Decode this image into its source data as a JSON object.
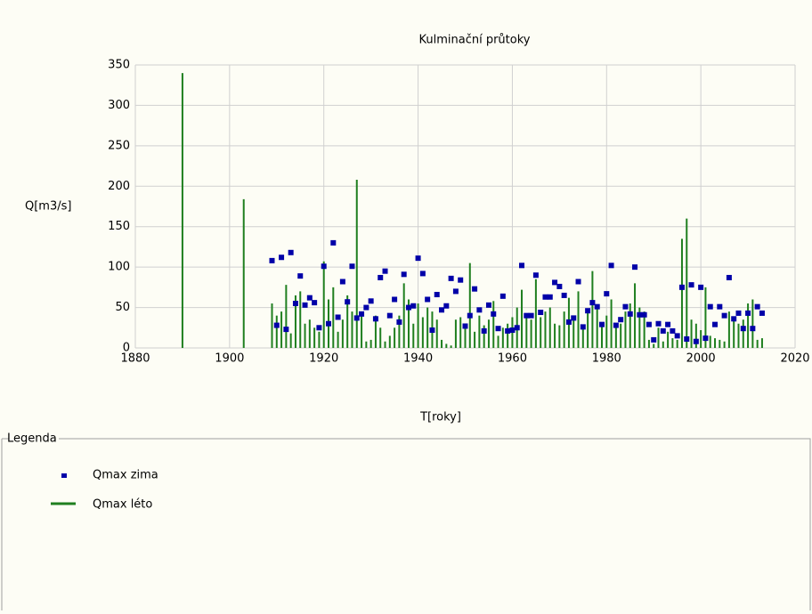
{
  "chart_data": {
    "type": "scatter",
    "title": "Kulminační průtoky",
    "x_label": "T[roky]",
    "y_label": "Q[m3/s]",
    "legend_title": "Legenda",
    "xlim": [
      1880,
      2020
    ],
    "ylim": [
      0,
      350
    ],
    "xticks": [
      1880,
      1900,
      1920,
      1940,
      1960,
      1980,
      2000,
      2020
    ],
    "yticks": [
      0,
      50,
      100,
      150,
      200,
      250,
      300,
      350
    ],
    "grid": true,
    "series": [
      {
        "name": "Qmax zima",
        "color": "#0000a8",
        "style": "square",
        "x": [
          1909,
          1910,
          1911,
          1912,
          1913,
          1914,
          1915,
          1916,
          1917,
          1918,
          1919,
          1920,
          1921,
          1922,
          1923,
          1924,
          1925,
          1926,
          1927,
          1928,
          1929,
          1930,
          1931,
          1932,
          1933,
          1934,
          1935,
          1936,
          1937,
          1938,
          1939,
          1940,
          1941,
          1942,
          1943,
          1944,
          1945,
          1946,
          1947,
          1948,
          1949,
          1950,
          1951,
          1952,
          1953,
          1954,
          1955,
          1956,
          1957,
          1958,
          1959,
          1960,
          1961,
          1962,
          1963,
          1964,
          1965,
          1966,
          1967,
          1968,
          1969,
          1970,
          1971,
          1972,
          1973,
          1974,
          1975,
          1976,
          1977,
          1978,
          1979,
          1980,
          1981,
          1982,
          1983,
          1984,
          1985,
          1986,
          1987,
          1988,
          1989,
          1990,
          1991,
          1992,
          1993,
          1994,
          1995,
          1996,
          1997,
          1998,
          1999,
          2000,
          2001,
          2002,
          2003,
          2004,
          2005,
          2006,
          2007,
          2008,
          2009,
          2010,
          2011,
          2012,
          2013
        ],
        "values": [
          108,
          28,
          112,
          23,
          118,
          55,
          89,
          53,
          62,
          56,
          25,
          101,
          30,
          130,
          38,
          82,
          57,
          101,
          37,
          42,
          50,
          58,
          36,
          87,
          95,
          40,
          60,
          32,
          91,
          50,
          52,
          111,
          92,
          60,
          22,
          66,
          47,
          52,
          86,
          70,
          84,
          27,
          40,
          73,
          47,
          21,
          53,
          42,
          24,
          64,
          21,
          22,
          25,
          102,
          40,
          40,
          90,
          44,
          63,
          63,
          81,
          76,
          65,
          32,
          37,
          82,
          26,
          46,
          56,
          51,
          29,
          67,
          102,
          28,
          35,
          51,
          42,
          100,
          41,
          41,
          29,
          10,
          30,
          21,
          29,
          21,
          15,
          75,
          11,
          78,
          8,
          75,
          12,
          51,
          29,
          51,
          40,
          87,
          36,
          43,
          24,
          43,
          24,
          51,
          43
        ]
      },
      {
        "name": "Qmax léto",
        "color": "#1f7f1f",
        "style": "stem",
        "x": [
          1890,
          1903,
          1909,
          1910,
          1911,
          1912,
          1913,
          1914,
          1915,
          1916,
          1917,
          1918,
          1919,
          1920,
          1921,
          1922,
          1923,
          1924,
          1925,
          1926,
          1927,
          1928,
          1929,
          1930,
          1931,
          1932,
          1933,
          1934,
          1935,
          1936,
          1937,
          1938,
          1939,
          1940,
          1941,
          1942,
          1943,
          1944,
          1945,
          1946,
          1947,
          1948,
          1949,
          1950,
          1951,
          1952,
          1953,
          1954,
          1955,
          1956,
          1957,
          1958,
          1959,
          1960,
          1961,
          1962,
          1963,
          1964,
          1965,
          1966,
          1967,
          1968,
          1969,
          1970,
          1971,
          1972,
          1973,
          1974,
          1975,
          1976,
          1977,
          1978,
          1979,
          1980,
          1981,
          1982,
          1983,
          1984,
          1985,
          1986,
          1987,
          1988,
          1989,
          1990,
          1991,
          1992,
          1993,
          1994,
          1995,
          1996,
          1997,
          1998,
          1999,
          2000,
          2001,
          2002,
          2003,
          2004,
          2005,
          2006,
          2007,
          2008,
          2009,
          2010,
          2011,
          2012,
          2013
        ],
        "values": [
          340,
          184,
          55,
          40,
          45,
          78,
          18,
          65,
          70,
          30,
          35,
          25,
          20,
          107,
          60,
          75,
          20,
          35,
          65,
          45,
          208,
          42,
          8,
          10,
          40,
          25,
          8,
          15,
          25,
          40,
          80,
          60,
          30,
          55,
          38,
          50,
          45,
          35,
          10,
          5,
          3,
          35,
          38,
          30,
          105,
          20,
          40,
          28,
          35,
          58,
          15,
          25,
          30,
          38,
          50,
          72,
          42,
          35,
          85,
          38,
          45,
          50,
          30,
          28,
          45,
          62,
          35,
          70,
          28,
          45,
          95,
          50,
          30,
          40,
          60,
          25,
          30,
          45,
          55,
          80,
          50,
          45,
          10,
          5,
          25,
          8,
          20,
          12,
          10,
          135,
          160,
          35,
          30,
          22,
          75,
          15,
          12,
          10,
          8,
          45,
          38,
          30,
          35,
          55,
          60,
          10,
          12
        ]
      }
    ]
  }
}
